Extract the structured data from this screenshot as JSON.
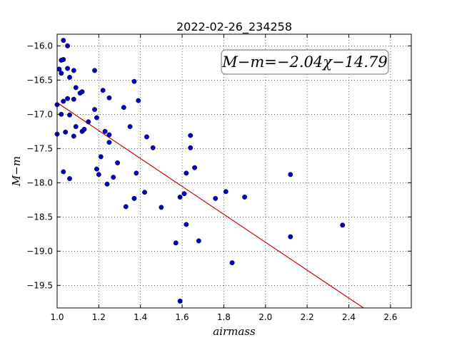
{
  "chart_data": {
    "type": "scatter",
    "title": "2022-02-26_234258",
    "xlabel": "airmass",
    "ylabel": "M−m",
    "xlim": [
      1.0,
      2.7
    ],
    "ylim": [
      -19.83,
      -15.83
    ],
    "y_inverted": true,
    "grid": true,
    "x_ticks": [
      1.0,
      1.2,
      1.4,
      1.6,
      1.8,
      2.0,
      2.2,
      2.4,
      2.6
    ],
    "x_tick_labels": [
      "1.0",
      "1.2",
      "1.4",
      "1.6",
      "1.8",
      "2.0",
      "2.2",
      "2.4",
      "2.6"
    ],
    "y_ticks": [
      -16.0,
      -16.5,
      -17.0,
      -17.5,
      -18.0,
      -18.5,
      -19.0,
      -19.5
    ],
    "y_tick_labels": [
      "−16.0",
      "−16.5",
      "−17.0",
      "−17.5",
      "−18.0",
      "−18.5",
      "−19.0",
      "−19.5"
    ],
    "annotation": "M−m=−2.04χ−14.79",
    "fit": {
      "slope": -2.04,
      "intercept": -14.79,
      "color": "#cc0000"
    },
    "point_color": "#0000cc",
    "points": [
      [
        1.0,
        -16.86
      ],
      [
        1.0,
        -17.29
      ],
      [
        1.01,
        -16.34
      ],
      [
        1.02,
        -16.21
      ],
      [
        1.02,
        -16.4
      ],
      [
        1.02,
        -17.0
      ],
      [
        1.03,
        -15.92
      ],
      [
        1.03,
        -16.2
      ],
      [
        1.03,
        -16.81
      ],
      [
        1.03,
        -17.84
      ],
      [
        1.04,
        -17.26
      ],
      [
        1.05,
        -16.0
      ],
      [
        1.05,
        -16.33
      ],
      [
        1.05,
        -16.77
      ],
      [
        1.06,
        -16.46
      ],
      [
        1.06,
        -17.01
      ],
      [
        1.06,
        -17.94
      ],
      [
        1.08,
        -16.36
      ],
      [
        1.08,
        -16.78
      ],
      [
        1.08,
        -17.32
      ],
      [
        1.09,
        -16.61
      ],
      [
        1.09,
        -17.18
      ],
      [
        1.11,
        -16.69
      ],
      [
        1.12,
        -16.67
      ],
      [
        1.12,
        -17.25
      ],
      [
        1.13,
        -17.22
      ],
      [
        1.15,
        -17.11
      ],
      [
        1.18,
        -16.36
      ],
      [
        1.18,
        -16.93
      ],
      [
        1.19,
        -17.05
      ],
      [
        1.19,
        -17.8
      ],
      [
        1.2,
        -17.88
      ],
      [
        1.21,
        -17.62
      ],
      [
        1.22,
        -16.65
      ],
      [
        1.23,
        -17.25
      ],
      [
        1.24,
        -18.02
      ],
      [
        1.25,
        -16.76
      ],
      [
        1.25,
        -17.3
      ],
      [
        1.25,
        -17.41
      ],
      [
        1.27,
        -17.92
      ],
      [
        1.29,
        -17.71
      ],
      [
        1.32,
        -16.9
      ],
      [
        1.33,
        -18.35
      ],
      [
        1.35,
        -17.18
      ],
      [
        1.37,
        -16.52
      ],
      [
        1.37,
        -18.23
      ],
      [
        1.38,
        -17.86
      ],
      [
        1.39,
        -16.8
      ],
      [
        1.42,
        -18.14
      ],
      [
        1.43,
        -17.33
      ],
      [
        1.46,
        -17.49
      ],
      [
        1.5,
        -18.36
      ],
      [
        1.57,
        -18.88
      ],
      [
        1.59,
        -18.21
      ],
      [
        1.59,
        -19.73
      ],
      [
        1.61,
        -18.16
      ],
      [
        1.62,
        -17.86
      ],
      [
        1.62,
        -18.61
      ],
      [
        1.64,
        -17.31
      ],
      [
        1.64,
        -17.49
      ],
      [
        1.66,
        -17.78
      ],
      [
        1.68,
        -18.85
      ],
      [
        1.76,
        -18.23
      ],
      [
        1.81,
        -18.13
      ],
      [
        1.84,
        -19.17
      ],
      [
        1.9,
        -18.21
      ],
      [
        2.12,
        -17.88
      ],
      [
        2.12,
        -18.79
      ],
      [
        2.37,
        -18.62
      ]
    ]
  }
}
